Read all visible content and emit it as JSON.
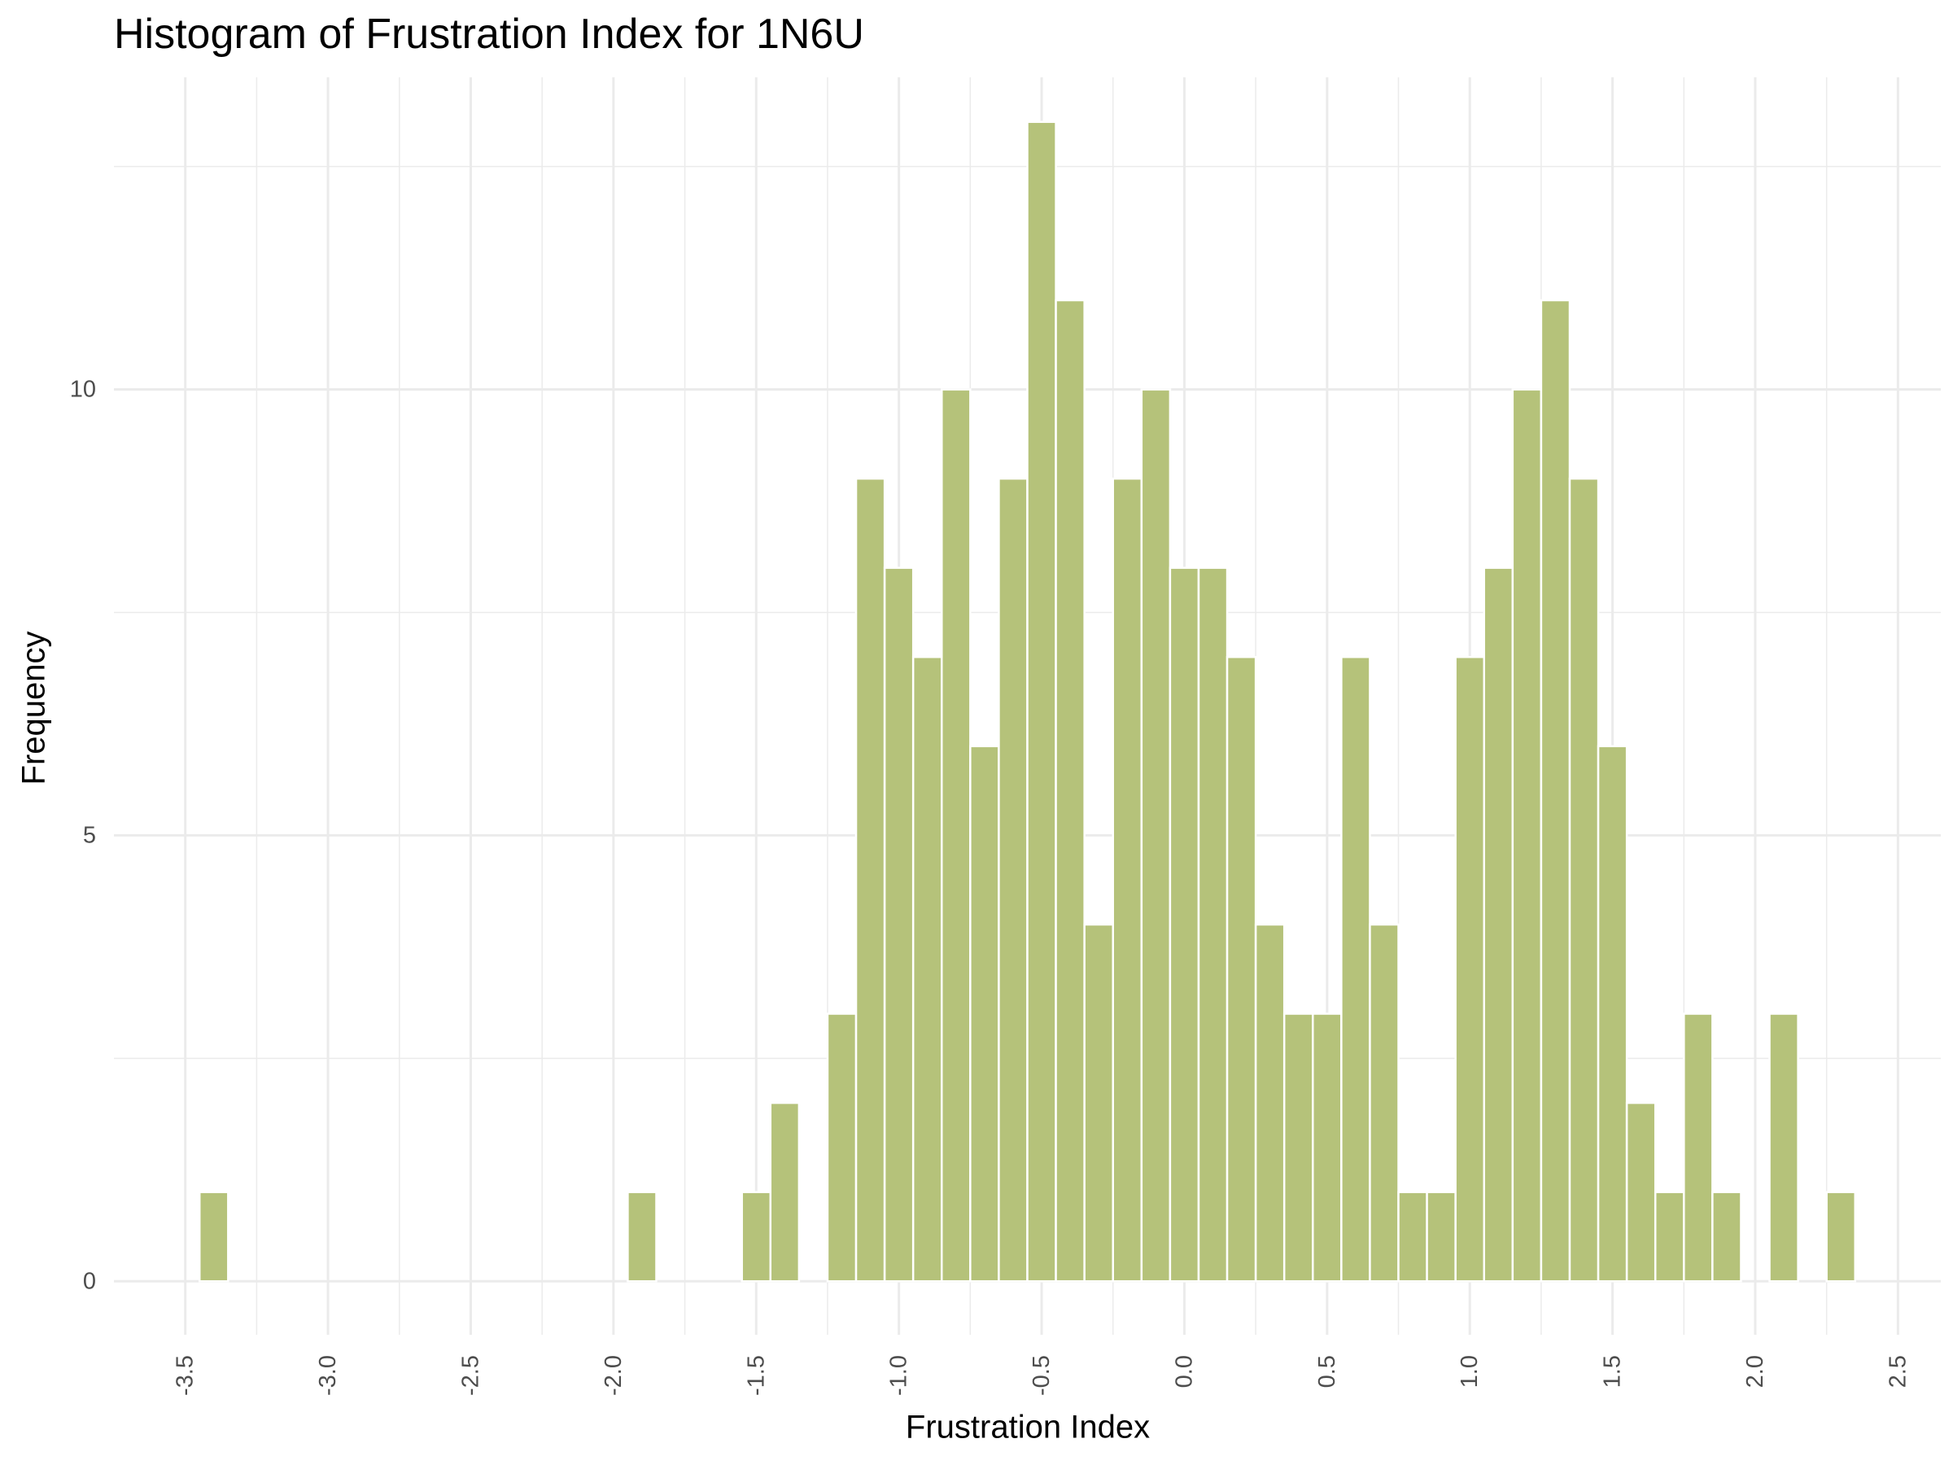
{
  "chart_data": {
    "type": "bar",
    "title": "Histogram of Frustration Index for 1N6U",
    "xlabel": "Frustration Index",
    "ylabel": "Frequency",
    "bin_width": 0.1,
    "bins": [
      {
        "x": -3.4,
        "count": 1
      },
      {
        "x": -1.9,
        "count": 1
      },
      {
        "x": -1.5,
        "count": 1
      },
      {
        "x": -1.4,
        "count": 2
      },
      {
        "x": -1.2,
        "count": 3
      },
      {
        "x": -1.1,
        "count": 9
      },
      {
        "x": -1.0,
        "count": 8
      },
      {
        "x": -0.9,
        "count": 7
      },
      {
        "x": -0.8,
        "count": 10
      },
      {
        "x": -0.7,
        "count": 6
      },
      {
        "x": -0.6,
        "count": 9
      },
      {
        "x": -0.5,
        "count": 13
      },
      {
        "x": -0.4,
        "count": 11
      },
      {
        "x": -0.3,
        "count": 4
      },
      {
        "x": -0.2,
        "count": 9
      },
      {
        "x": -0.1,
        "count": 10
      },
      {
        "x": 0.0,
        "count": 8
      },
      {
        "x": 0.1,
        "count": 8
      },
      {
        "x": 0.2,
        "count": 7
      },
      {
        "x": 0.3,
        "count": 4
      },
      {
        "x": 0.4,
        "count": 3
      },
      {
        "x": 0.5,
        "count": 3
      },
      {
        "x": 0.6,
        "count": 7
      },
      {
        "x": 0.7,
        "count": 4
      },
      {
        "x": 0.8,
        "count": 1
      },
      {
        "x": 0.9,
        "count": 1
      },
      {
        "x": 1.0,
        "count": 7
      },
      {
        "x": 1.1,
        "count": 8
      },
      {
        "x": 1.2,
        "count": 10
      },
      {
        "x": 1.3,
        "count": 11
      },
      {
        "x": 1.4,
        "count": 9
      },
      {
        "x": 1.5,
        "count": 6
      },
      {
        "x": 1.6,
        "count": 2
      },
      {
        "x": 1.7,
        "count": 1
      },
      {
        "x": 1.8,
        "count": 3
      },
      {
        "x": 1.9,
        "count": 1
      },
      {
        "x": 2.1,
        "count": 3
      },
      {
        "x": 2.3,
        "count": 1
      }
    ],
    "xlim": [
      -3.75,
      2.65
    ],
    "ylim": [
      -0.6,
      13.5
    ],
    "x_ticks": [
      "-3.5",
      "-3.0",
      "-2.5",
      "-2.0",
      "-1.5",
      "-1.0",
      "-0.5",
      "0.0",
      "0.5",
      "1.0",
      "1.5",
      "2.0",
      "2.5"
    ],
    "x_tick_values": [
      -3.5,
      -3.0,
      -2.5,
      -2.0,
      -1.5,
      -1.0,
      -0.5,
      0.0,
      0.5,
      1.0,
      1.5,
      2.0,
      2.5
    ],
    "y_ticks": [
      "0",
      "5",
      "10"
    ],
    "y_tick_values": [
      0,
      5,
      10
    ],
    "x_tick_rotation": "vertical",
    "grid": true,
    "legend": "none",
    "bar_color": "#b5c27a",
    "bar_outline": "#ffffff",
    "grid_color": "#ebebeb"
  }
}
